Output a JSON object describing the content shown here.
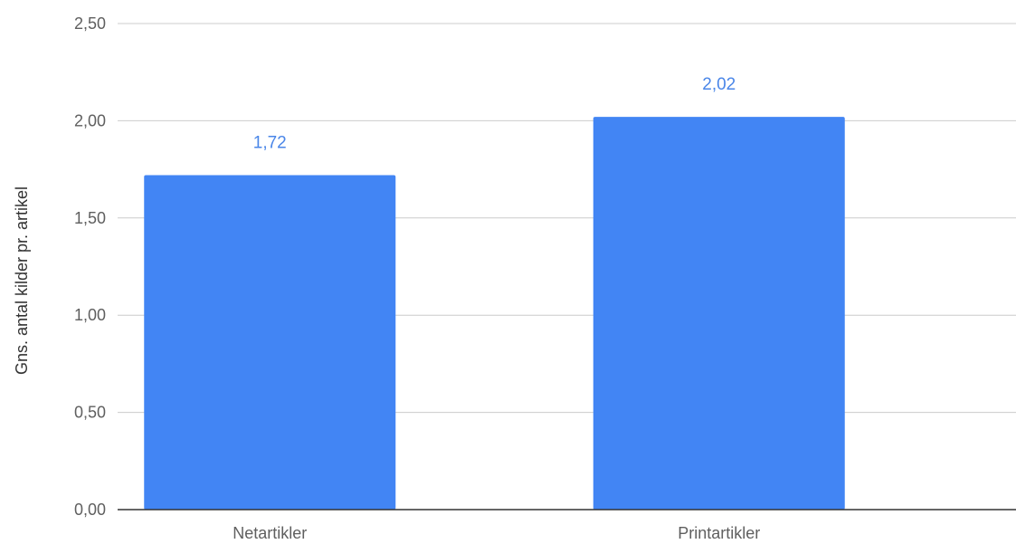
{
  "chart_data": {
    "type": "bar",
    "categories": [
      "Netartikler",
      "Printartikler"
    ],
    "values": [
      1.72,
      2.02
    ],
    "value_labels": [
      "1,72",
      "2,02"
    ],
    "title": "",
    "xlabel": "",
    "ylabel": "Gns. antal kilder pr. artikel",
    "ylim": [
      0,
      2.5
    ],
    "yticks": [
      0,
      0.5,
      1.0,
      1.5,
      2.0,
      2.5
    ],
    "ytick_labels": [
      "0,00",
      "0,50",
      "1,00",
      "1,50",
      "2,00",
      "2,50"
    ],
    "grid": true,
    "legend": "none",
    "colors": {
      "bar": "#4285f4",
      "data_label": "#4a86e8",
      "gridline": "#cccccc",
      "baseline": "#333333",
      "tick_label": "#5f5f5f"
    }
  }
}
